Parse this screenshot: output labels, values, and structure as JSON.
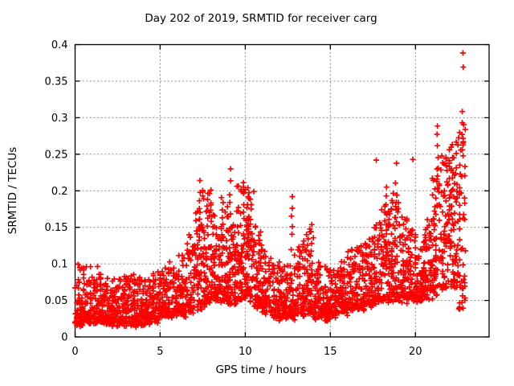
{
  "chart_data": {
    "type": "scatter",
    "title": "Day 202 of 2019, SRMTID for receiver carg",
    "xlabel": "GPS time / hours",
    "ylabel": "SRMTID / TECUs",
    "xlim": [
      0,
      24.33
    ],
    "ylim": [
      0,
      0.4
    ],
    "xticks": [
      {
        "v": 0,
        "label": "0"
      },
      {
        "v": 5,
        "label": "5"
      },
      {
        "v": 10,
        "label": "10"
      },
      {
        "v": 15,
        "label": "15"
      },
      {
        "v": 20,
        "label": "20"
      }
    ],
    "yticks": [
      {
        "v": 0.0,
        "label": "0"
      },
      {
        "v": 0.05,
        "label": "0.05"
      },
      {
        "v": 0.1,
        "label": "0.1"
      },
      {
        "v": 0.15,
        "label": "0.15"
      },
      {
        "v": 0.2,
        "label": "0.2"
      },
      {
        "v": 0.25,
        "label": "0.25"
      },
      {
        "v": 0.3,
        "label": "0.3"
      },
      {
        "v": 0.35,
        "label": "0.35"
      },
      {
        "v": 0.4,
        "label": "0.4"
      }
    ],
    "grid": true,
    "grid_style": "dashed",
    "grid_color": "#8c8c8c",
    "frame_color": "#000000",
    "legend": "none",
    "marker": {
      "shape": "plus",
      "color": "#ff0000",
      "size": 7,
      "stroke_width": 1.7
    },
    "data_extent_hours": [
      0,
      22.95
    ],
    "seed": 1337,
    "band_segments": [
      [
        0.0,
        0.5,
        64,
        0.018,
        0.1,
        2.0
      ],
      [
        0.5,
        1.0,
        64,
        0.02,
        0.095,
        2.0
      ],
      [
        1.0,
        1.5,
        64,
        0.022,
        0.092,
        2.0
      ],
      [
        1.5,
        2.0,
        64,
        0.02,
        0.085,
        2.0
      ],
      [
        2.0,
        2.5,
        64,
        0.018,
        0.078,
        2.0
      ],
      [
        2.5,
        3.0,
        64,
        0.018,
        0.08,
        2.0
      ],
      [
        3.0,
        3.5,
        64,
        0.02,
        0.085,
        2.0
      ],
      [
        3.5,
        4.0,
        64,
        0.018,
        0.08,
        2.0
      ],
      [
        4.0,
        4.5,
        64,
        0.02,
        0.082,
        2.0
      ],
      [
        4.5,
        5.0,
        64,
        0.024,
        0.09,
        2.0
      ],
      [
        5.0,
        5.5,
        60,
        0.028,
        0.096,
        2.0
      ],
      [
        5.5,
        6.0,
        60,
        0.03,
        0.1,
        1.9
      ],
      [
        6.0,
        6.5,
        60,
        0.03,
        0.112,
        1.9
      ],
      [
        6.5,
        7.0,
        60,
        0.032,
        0.14,
        1.9
      ],
      [
        7.0,
        7.5,
        66,
        0.04,
        0.175,
        1.8
      ],
      [
        7.5,
        8.0,
        70,
        0.045,
        0.205,
        1.8
      ],
      [
        8.0,
        8.5,
        70,
        0.05,
        0.168,
        1.8
      ],
      [
        8.5,
        9.0,
        66,
        0.05,
        0.195,
        1.8
      ],
      [
        9.0,
        9.5,
        66,
        0.048,
        0.16,
        1.8
      ],
      [
        9.5,
        10.0,
        70,
        0.05,
        0.205,
        1.7
      ],
      [
        10.0,
        10.5,
        70,
        0.05,
        0.198,
        1.7
      ],
      [
        10.5,
        11.0,
        64,
        0.042,
        0.15,
        1.9
      ],
      [
        11.0,
        11.5,
        60,
        0.036,
        0.12,
        2.0
      ],
      [
        11.5,
        12.0,
        60,
        0.03,
        0.1,
        2.0
      ],
      [
        12.0,
        12.5,
        60,
        0.026,
        0.1,
        2.0
      ],
      [
        12.5,
        13.0,
        60,
        0.028,
        0.118,
        2.0
      ],
      [
        13.0,
        13.5,
        60,
        0.03,
        0.128,
        2.0
      ],
      [
        13.5,
        14.0,
        60,
        0.034,
        0.148,
        1.9
      ],
      [
        14.0,
        14.5,
        60,
        0.028,
        0.1,
        2.0
      ],
      [
        14.5,
        15.0,
        60,
        0.026,
        0.092,
        2.0
      ],
      [
        15.0,
        15.5,
        60,
        0.03,
        0.1,
        2.0
      ],
      [
        15.5,
        16.0,
        60,
        0.034,
        0.106,
        2.0
      ],
      [
        16.0,
        16.5,
        60,
        0.04,
        0.118,
        1.9
      ],
      [
        16.5,
        17.0,
        60,
        0.04,
        0.13,
        1.9
      ],
      [
        17.0,
        17.5,
        60,
        0.044,
        0.14,
        1.9
      ],
      [
        17.5,
        18.0,
        62,
        0.05,
        0.155,
        1.8
      ],
      [
        18.0,
        18.5,
        64,
        0.05,
        0.188,
        1.8
      ],
      [
        18.5,
        19.0,
        64,
        0.05,
        0.198,
        1.8
      ],
      [
        19.0,
        19.5,
        62,
        0.05,
        0.168,
        1.8
      ],
      [
        19.5,
        20.0,
        62,
        0.05,
        0.15,
        1.8
      ],
      [
        20.0,
        20.5,
        62,
        0.05,
        0.14,
        1.8
      ],
      [
        20.5,
        21.0,
        62,
        0.055,
        0.168,
        1.7
      ],
      [
        21.0,
        21.5,
        64,
        0.06,
        0.235,
        1.6
      ],
      [
        21.5,
        22.0,
        66,
        0.068,
        0.258,
        1.6
      ],
      [
        22.0,
        22.5,
        66,
        0.07,
        0.268,
        1.6
      ],
      [
        22.5,
        22.95,
        58,
        0.04,
        0.3,
        1.5
      ]
    ],
    "spike_columns": [
      [
        7.32,
        0.15,
        0.212,
        6
      ],
      [
        7.78,
        0.14,
        0.19,
        5
      ],
      [
        9.12,
        0.15,
        0.228,
        6
      ],
      [
        9.9,
        0.16,
        0.215,
        6
      ],
      [
        10.15,
        0.15,
        0.205,
        5
      ],
      [
        12.75,
        0.14,
        0.19,
        5
      ],
      [
        13.9,
        0.12,
        0.155,
        4
      ],
      [
        18.3,
        0.15,
        0.205,
        5
      ],
      [
        18.85,
        0.16,
        0.235,
        4
      ],
      [
        21.3,
        0.2,
        0.29,
        7
      ],
      [
        22.15,
        0.18,
        0.265,
        6
      ],
      [
        22.78,
        0.26,
        0.312,
        4
      ],
      [
        22.8,
        0.37,
        0.388,
        2
      ]
    ],
    "outliers": [
      [
        17.7,
        0.242
      ],
      [
        19.85,
        0.243
      ]
    ]
  }
}
